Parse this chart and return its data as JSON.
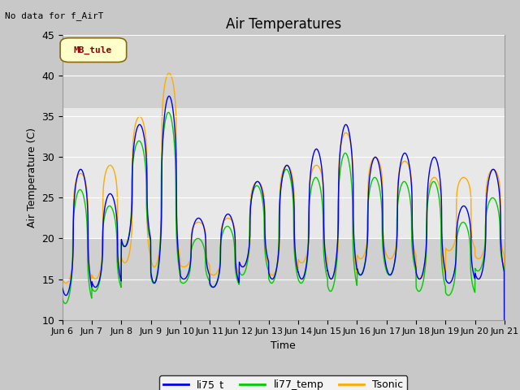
{
  "title": "Air Temperatures",
  "top_left_text": "No data for f_AirT",
  "ylabel": "Air Temperature (C)",
  "xlabel": "Time",
  "ylim": [
    10,
    45
  ],
  "yticks": [
    10,
    15,
    20,
    25,
    30,
    35,
    40,
    45
  ],
  "legend_label": "MB_tule",
  "series_labels": [
    "li75_t",
    "li77_temp",
    "Tsonic"
  ],
  "series_colors": [
    "#0000ee",
    "#00cc00",
    "#ffaa00"
  ],
  "bg_color": "#e8e8e8",
  "fig_color": "#c8c8c8",
  "title_fontsize": 12,
  "axis_fontsize": 9,
  "tick_fontsize": 9,
  "xtick_labels": [
    "Jun 6",
    "Jun 7",
    "Jun 8",
    "Jun 9",
    "Jun 10",
    "Jun 11",
    "Jun 12",
    "Jun 13",
    "Jun 14",
    "Jun 15",
    "Jun 16",
    "Jun 17",
    "Jun 18",
    "Jun 19",
    "Jun 20",
    "Jun 21"
  ],
  "shaded_upper": [
    36,
    45
  ],
  "shaded_lower": [
    10,
    20
  ]
}
